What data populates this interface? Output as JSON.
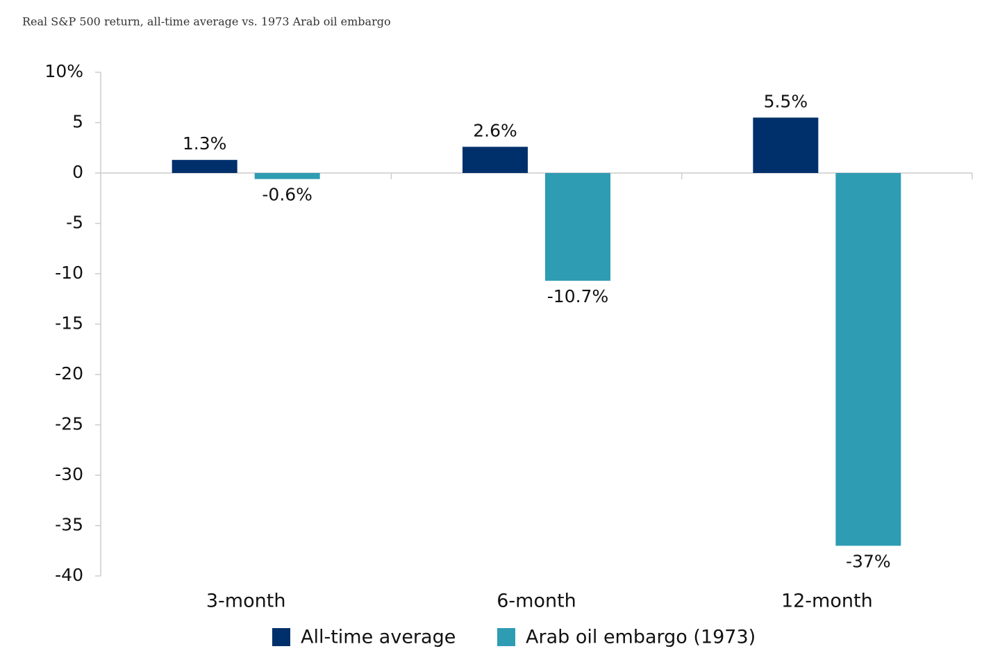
{
  "chart_data": {
    "type": "bar",
    "title": "Real S&P 500 return, all-time average vs. 1973 Arab oil embargo",
    "categories": [
      "3-month",
      "6-month",
      "12-month"
    ],
    "series": [
      {
        "name": "All-time average",
        "color": "#00306b",
        "values": [
          1.3,
          2.6,
          5.5
        ],
        "value_labels": [
          "1.3%",
          "2.6%",
          "5.5%"
        ]
      },
      {
        "name": "Arab oil embargo (1973)",
        "color": "#2e9cb3",
        "values": [
          -0.6,
          -10.7,
          -37
        ],
        "value_labels": [
          "-0.6%",
          "-10.7%",
          "-37%"
        ]
      }
    ],
    "ylim": [
      -40,
      10
    ],
    "yticks": [
      {
        "value": 10,
        "label": "10%"
      },
      5,
      0,
      -5,
      -10,
      -15,
      -20,
      -25,
      -30,
      -35,
      -40
    ],
    "legend": "bottom"
  }
}
